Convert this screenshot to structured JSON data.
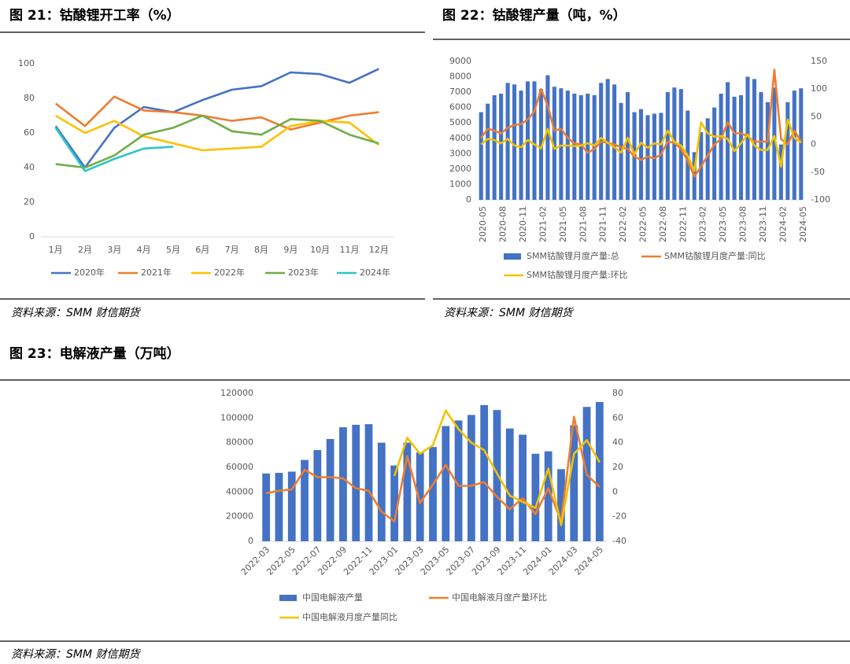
{
  "chart_data": [
    {
      "type": "line",
      "title": "图 21：钴酸锂开工率（%）",
      "source": "资料来源：SMM 财信期货",
      "categories": [
        "1月",
        "2月",
        "3月",
        "4月",
        "5月",
        "6月",
        "7月",
        "8月",
        "9月",
        "10月",
        "11月",
        "12月"
      ],
      "series": [
        {
          "name": "2020年",
          "color": "#4472c4",
          "values": [
            64,
            40,
            63,
            75,
            72,
            79,
            85,
            87,
            95,
            94,
            89,
            97
          ]
        },
        {
          "name": "2021年",
          "color": "#ed7d31",
          "values": [
            77,
            64,
            81,
            73,
            72,
            70,
            67,
            69,
            62,
            66,
            70,
            72
          ]
        },
        {
          "name": "2022年",
          "color": "#ffc000",
          "values": [
            70,
            60,
            67,
            58,
            54,
            50,
            51,
            52,
            64,
            67,
            66,
            53
          ]
        },
        {
          "name": "2023年",
          "color": "#70ad47",
          "values": [
            42,
            40,
            47,
            59,
            63,
            70,
            61,
            59,
            68,
            67,
            59,
            54
          ]
        },
        {
          "name": "2024年",
          "color": "#2ec4c6",
          "values": [
            63,
            38,
            45,
            51,
            52,
            null,
            null,
            null,
            null,
            null,
            null,
            null
          ]
        }
      ],
      "ylim": [
        0,
        100
      ],
      "yticks": [
        0,
        20,
        40,
        60,
        80,
        100
      ],
      "grid": false,
      "legend": "bottom"
    },
    {
      "type": "bar_line",
      "title": "图 22：钴酸锂产量（吨，%）",
      "source": "资料来源：SMM 财信期货",
      "categories": [
        "2020-05",
        null,
        null,
        "2020-08",
        null,
        null,
        "2020-11",
        null,
        null,
        "2021-02",
        null,
        null,
        "2021-05",
        null,
        null,
        "2021-08",
        null,
        null,
        "2021-11",
        null,
        null,
        "2022-02",
        null,
        null,
        "2022-05",
        null,
        null,
        "2022-08",
        null,
        null,
        "2022-11",
        null,
        null,
        "2023-02",
        null,
        null,
        "2023-05",
        null,
        null,
        "2023-08",
        null,
        null,
        "2023-11",
        null,
        null,
        "2024-02",
        null,
        null,
        "2024-05"
      ],
      "series": [
        {
          "name": "SMM钴酸锂月度产量:总",
          "type": "bar",
          "color": "#4472c4",
          "values": [
            5700,
            6250,
            6800,
            6900,
            7600,
            7500,
            7100,
            7700,
            7700,
            7200,
            8100,
            7350,
            7250,
            7100,
            6900,
            6800,
            6900,
            6800,
            7600,
            7850,
            7500,
            6300,
            7000,
            5700,
            5900,
            5500,
            5600,
            5650,
            7000,
            7300,
            7200,
            5800,
            3100,
            4400,
            5300,
            6000,
            6900,
            7650,
            6700,
            6800,
            8000,
            7850,
            7000,
            6350,
            7300,
            3600,
            6350,
            7100,
            7250
          ]
        },
        {
          "name": "SMM钴酸锂月度产量:同比",
          "type": "line",
          "axis": "y2",
          "color": "#ed7d31",
          "values": [
            12,
            28,
            25,
            20,
            30,
            35,
            37,
            45,
            60,
            100,
            70,
            25,
            28,
            12,
            2,
            0,
            -15,
            -8,
            5,
            3,
            0,
            -5,
            -8,
            -22,
            -28,
            -22,
            -25,
            -18,
            5,
            3,
            -8,
            -30,
            -58,
            -40,
            -20,
            0,
            10,
            40,
            20,
            20,
            15,
            5,
            5,
            5,
            135,
            10,
            0,
            25,
            5
          ]
        },
        {
          "name": "SMM钴酸锂月度产量:环比",
          "type": "line",
          "axis": "y2",
          "color": "#f2c200",
          "values": [
            0,
            10,
            8,
            2,
            10,
            -2,
            -5,
            8,
            0,
            -7,
            28,
            -8,
            -2,
            -2,
            -3,
            -2,
            2,
            -2,
            12,
            3,
            -5,
            -15,
            12,
            -18,
            3,
            -6,
            2,
            0,
            25,
            5,
            -2,
            -20,
            -48,
            40,
            20,
            14,
            15,
            10,
            -12,
            2,
            18,
            -2,
            -10,
            -10,
            15,
            -40,
            45,
            12,
            3
          ]
        }
      ],
      "ylim": [
        0,
        9000
      ],
      "yticks": [
        0,
        1000,
        2000,
        3000,
        4000,
        5000,
        6000,
        7000,
        8000,
        9000
      ],
      "y2lim": [
        -100,
        150
      ],
      "y2ticks": [
        -100,
        -50,
        0,
        50,
        100,
        150
      ],
      "grid": false,
      "legend": "bottom"
    },
    {
      "type": "bar_line",
      "title": "图 23：电解液产量（万吨）",
      "source": "资料来源：SMM 财信期货",
      "categories": [
        "2022-03",
        null,
        "2022-05",
        null,
        "2022-07",
        null,
        "2022-09",
        null,
        "2022-11",
        null,
        "2023-01",
        null,
        "2023-03",
        null,
        "2023-05",
        null,
        "2023-07",
        null,
        "2023-09",
        null,
        "2023-11",
        null,
        "2024-01",
        null,
        "2024-03",
        null,
        "2024-05"
      ],
      "series": [
        {
          "name": "中国电解液产量",
          "type": "bar",
          "color": "#4472c4",
          "values": [
            55000,
            55500,
            56500,
            66000,
            74000,
            83000,
            92500,
            94500,
            95000,
            80000,
            61500,
            80000,
            72000,
            76500,
            93500,
            98000,
            102500,
            110500,
            106500,
            91500,
            86500,
            71000,
            73000,
            58500,
            94000,
            109000,
            113000
          ]
        },
        {
          "name": "中国电解液月度产量环比",
          "type": "line",
          "axis": "y2",
          "color": "#ed7d31",
          "values": [
            -1,
            1,
            2,
            18,
            12,
            12,
            11,
            3,
            1,
            -16,
            -24,
            29,
            -9,
            6,
            22,
            5,
            5,
            8,
            -4,
            -14,
            -5,
            -18,
            3,
            -24,
            61,
            14,
            4
          ]
        },
        {
          "name": "中国电解液月度产量同比",
          "type": "line",
          "axis": "y2",
          "color": "#f2c200",
          "values": [
            null,
            null,
            null,
            null,
            null,
            null,
            null,
            null,
            null,
            null,
            13,
            44,
            31,
            38,
            66,
            51,
            40,
            34,
            15,
            -3,
            -8,
            -13,
            19,
            -27,
            31,
            42,
            24
          ]
        }
      ],
      "ylim": [
        0,
        120000
      ],
      "yticks": [
        0,
        20000,
        40000,
        60000,
        80000,
        100000,
        120000
      ],
      "y2lim": [
        -40,
        80
      ],
      "y2ticks": [
        -40,
        -20,
        0,
        20,
        40,
        60,
        80
      ],
      "grid": false,
      "legend": "bottom"
    }
  ]
}
